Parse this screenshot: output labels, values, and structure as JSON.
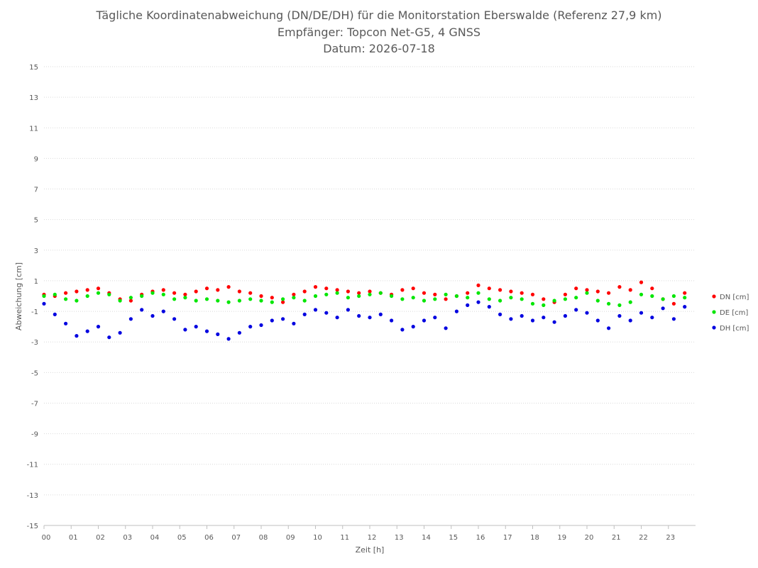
{
  "chart_data": {
    "type": "scatter",
    "title": "Tägliche Koordinatenabweichung (DN/DE/DH) für die Monitorstation Eberswalde (Referenz 27,9 km)",
    "subtitle": "Empfänger: Topcon Net-G5, 4 GNSS",
    "date_line": "Datum: 2026-07-18",
    "xlabel": "Zeit [h]",
    "ylabel": "Abweichung [cm]",
    "xlim": [
      0,
      24
    ],
    "ylim": [
      -15,
      15
    ],
    "x_ticks": [
      "00",
      "01",
      "02",
      "03",
      "04",
      "05",
      "06",
      "07",
      "08",
      "09",
      "10",
      "11",
      "12",
      "13",
      "14",
      "15",
      "16",
      "17",
      "18",
      "19",
      "20",
      "21",
      "22",
      "23"
    ],
    "y_ticks": [
      15,
      13,
      11,
      9,
      7,
      5,
      3,
      1,
      -1,
      -3,
      -5,
      -7,
      -9,
      -11,
      -13,
      -15
    ],
    "grid": "horizontal dotted",
    "legend_position": "right",
    "series": [
      {
        "name": "DN [cm]",
        "color": "#ff0000",
        "x": [
          0.0,
          0.4,
          0.8,
          1.2,
          1.6,
          2.0,
          2.4,
          2.8,
          3.2,
          3.6,
          4.0,
          4.4,
          4.8,
          5.2,
          5.6,
          6.0,
          6.4,
          6.8,
          7.2,
          7.6,
          8.0,
          8.4,
          8.8,
          9.2,
          9.6,
          10.0,
          10.4,
          10.8,
          11.2,
          11.6,
          12.0,
          12.4,
          12.8,
          13.2,
          13.6,
          14.0,
          14.4,
          14.8,
          15.2,
          15.6,
          16.0,
          16.4,
          16.8,
          17.2,
          17.6,
          18.0,
          18.4,
          18.8,
          19.2,
          19.6,
          20.0,
          20.4,
          20.8,
          21.2,
          21.6,
          22.0,
          22.4,
          22.8,
          23.2,
          23.6
        ],
        "y": [
          0.1,
          0.0,
          0.2,
          0.3,
          0.4,
          0.5,
          0.2,
          -0.2,
          -0.3,
          0.1,
          0.3,
          0.4,
          0.2,
          0.1,
          0.3,
          0.5,
          0.4,
          0.6,
          0.3,
          0.2,
          0.0,
          -0.1,
          -0.4,
          0.1,
          0.3,
          0.6,
          0.5,
          0.4,
          0.3,
          0.2,
          0.3,
          0.2,
          0.1,
          0.4,
          0.5,
          0.2,
          0.1,
          -0.2,
          0.0,
          0.2,
          0.7,
          0.5,
          0.4,
          0.3,
          0.2,
          0.1,
          -0.2,
          -0.4,
          0.1,
          0.5,
          0.4,
          0.3,
          0.2,
          0.6,
          0.4,
          0.9,
          0.5,
          -0.2,
          -0.5,
          0.2
        ]
      },
      {
        "name": "DE [cm]",
        "color": "#00e600",
        "x": [
          0.0,
          0.4,
          0.8,
          1.2,
          1.6,
          2.0,
          2.4,
          2.8,
          3.2,
          3.6,
          4.0,
          4.4,
          4.8,
          5.2,
          5.6,
          6.0,
          6.4,
          6.8,
          7.2,
          7.6,
          8.0,
          8.4,
          8.8,
          9.2,
          9.6,
          10.0,
          10.4,
          10.8,
          11.2,
          11.6,
          12.0,
          12.4,
          12.8,
          13.2,
          13.6,
          14.0,
          14.4,
          14.8,
          15.2,
          15.6,
          16.0,
          16.4,
          16.8,
          17.2,
          17.6,
          18.0,
          18.4,
          18.8,
          19.2,
          19.6,
          20.0,
          20.4,
          20.8,
          21.2,
          21.6,
          22.0,
          22.4,
          22.8,
          23.2,
          23.6
        ],
        "y": [
          0.0,
          0.1,
          -0.2,
          -0.3,
          0.0,
          0.2,
          0.1,
          -0.3,
          -0.1,
          0.0,
          0.2,
          0.1,
          -0.2,
          -0.1,
          -0.3,
          -0.2,
          -0.3,
          -0.4,
          -0.3,
          -0.2,
          -0.3,
          -0.4,
          -0.2,
          -0.1,
          -0.3,
          0.0,
          0.1,
          0.2,
          -0.1,
          0.0,
          0.1,
          0.2,
          0.0,
          -0.2,
          -0.1,
          -0.3,
          -0.2,
          0.1,
          0.0,
          -0.1,
          0.2,
          -0.2,
          -0.3,
          -0.1,
          -0.2,
          -0.5,
          -0.6,
          -0.3,
          -0.2,
          -0.1,
          0.2,
          -0.3,
          -0.5,
          -0.6,
          -0.4,
          0.1,
          0.0,
          -0.2,
          0.0,
          -0.1
        ]
      },
      {
        "name": "DH [cm]",
        "color": "#0000e0",
        "x": [
          0.0,
          0.4,
          0.8,
          1.2,
          1.6,
          2.0,
          2.4,
          2.8,
          3.2,
          3.6,
          4.0,
          4.4,
          4.8,
          5.2,
          5.6,
          6.0,
          6.4,
          6.8,
          7.2,
          7.6,
          8.0,
          8.4,
          8.8,
          9.2,
          9.6,
          10.0,
          10.4,
          10.8,
          11.2,
          11.6,
          12.0,
          12.4,
          12.8,
          13.2,
          13.6,
          14.0,
          14.4,
          14.8,
          15.2,
          15.6,
          16.0,
          16.4,
          16.8,
          17.2,
          17.6,
          18.0,
          18.4,
          18.8,
          19.2,
          19.6,
          20.0,
          20.4,
          20.8,
          21.2,
          21.6,
          22.0,
          22.4,
          22.8,
          23.2,
          23.6
        ],
        "y": [
          -0.5,
          -1.2,
          -1.8,
          -2.6,
          -2.3,
          -2.0,
          -2.7,
          -2.4,
          -1.5,
          -0.9,
          -1.3,
          -1.0,
          -1.5,
          -2.2,
          -2.0,
          -2.3,
          -2.5,
          -2.8,
          -2.4,
          -2.0,
          -1.9,
          -1.6,
          -1.5,
          -1.8,
          -1.2,
          -0.9,
          -1.1,
          -1.4,
          -0.9,
          -1.3,
          -1.4,
          -1.2,
          -1.6,
          -2.2,
          -2.0,
          -1.6,
          -1.4,
          -2.1,
          -1.0,
          -0.6,
          -0.4,
          -0.7,
          -1.2,
          -1.5,
          -1.3,
          -1.6,
          -1.4,
          -1.7,
          -1.3,
          -0.9,
          -1.1,
          -1.6,
          -2.1,
          -1.3,
          -1.6,
          -1.1,
          -1.4,
          -0.8,
          -1.5,
          -0.7
        ]
      }
    ]
  }
}
